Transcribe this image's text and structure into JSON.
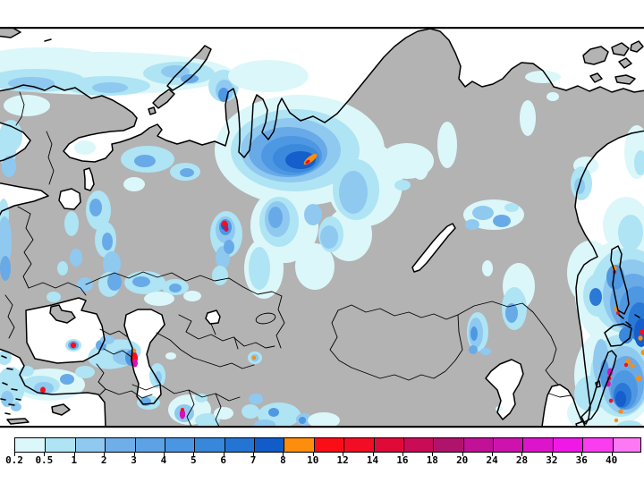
{
  "window": {
    "background": "#FFFFFF"
  },
  "map": {
    "frame_color": "#000000",
    "sea_color": "#FFFFFF",
    "land_color": "#B3B3B3",
    "coastline_color": "#000000",
    "border_color": "#000000",
    "precip_colors": {
      "p02": "#DCF7F9",
      "p05": "#AEE4F4",
      "p1": "#8FC9F0",
      "p2": "#68AAE8",
      "p3": "#4E97E2",
      "p4": "#3B89DC",
      "p5": "#2A79D6",
      "p6": "#155ECB",
      "p8": "#FD8D0C",
      "p10": "#FA0D18",
      "p14": "#D80A4E",
      "p20": "#D511B8"
    }
  },
  "legend": {
    "tick_labels": [
      "0.2",
      "0.5",
      "1",
      "2",
      "3",
      "4",
      "5",
      "6",
      "7",
      "8",
      "10",
      "12",
      "14",
      "16",
      "18",
      "20",
      "24",
      "28",
      "32",
      "36",
      "40"
    ],
    "segment_colors": [
      "#DCF7F9",
      "#AEE4F4",
      "#8FC9F0",
      "#6FAEE9",
      "#5CA2E5",
      "#4B96E2",
      "#3787DB",
      "#2474D4",
      "#115CC9",
      "#FD8D0C",
      "#FB0D17",
      "#F20D24",
      "#E00A38",
      "#C90C55",
      "#B0136B",
      "#C11197",
      "#CE12AE",
      "#DD15CA",
      "#EF18E6",
      "#FB3DF0",
      "#FD78F5"
    ],
    "outline_color": "#000000",
    "label_color": "#000000"
  },
  "chart_data": {
    "type": "heatmap",
    "title": "",
    "legend_values": [
      0.2,
      0.5,
      1,
      2,
      3,
      4,
      5,
      6,
      7,
      8,
      10,
      12,
      14,
      16,
      18,
      20,
      24,
      28,
      32,
      36,
      40
    ],
    "legend_position": "bottom",
    "grid": false
  }
}
